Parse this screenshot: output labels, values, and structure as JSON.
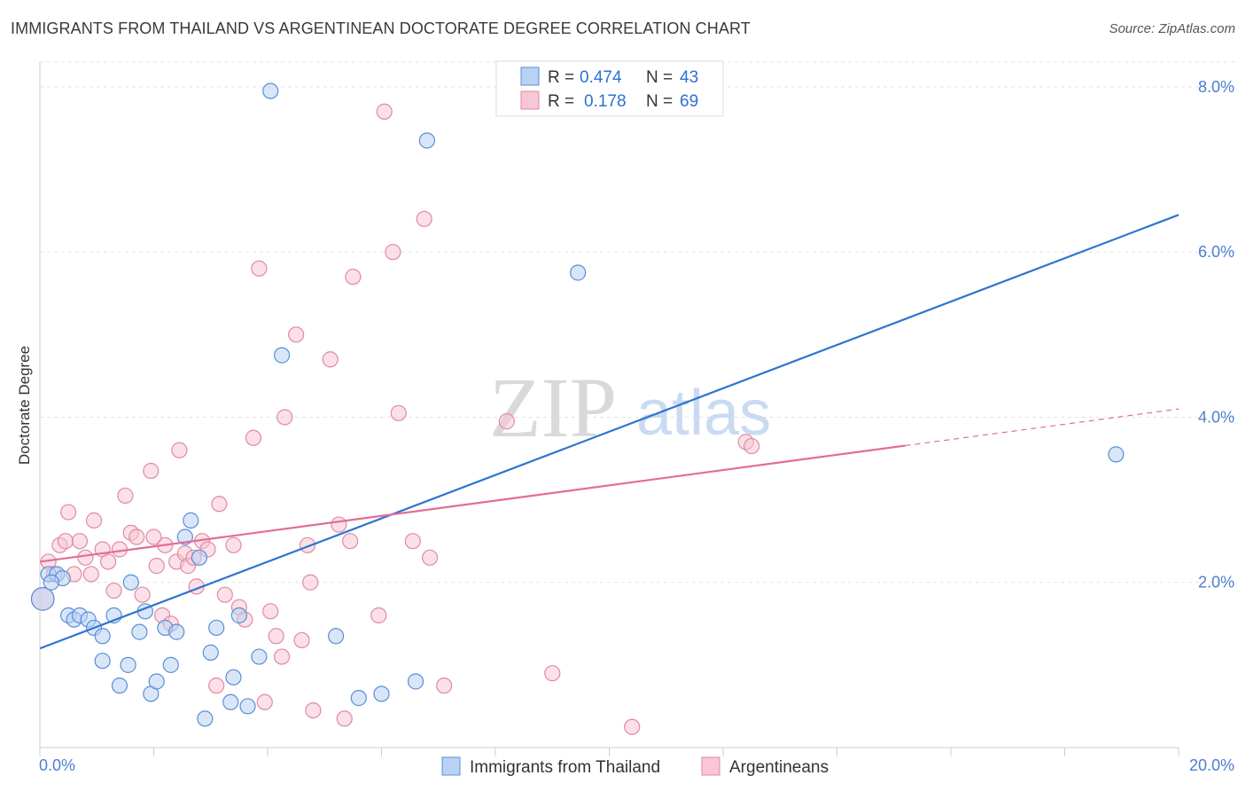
{
  "title": "IMMIGRANTS FROM THAILAND VS ARGENTINEAN DOCTORATE DEGREE CORRELATION CHART",
  "source": "Source: ZipAtlas.com",
  "watermark": {
    "zip": "ZIP",
    "atlas": "atlas"
  },
  "colors": {
    "thailand_fill": "#b8d2f3",
    "thailand_stroke": "#5a8ed8",
    "thailand_line": "#2f74d0",
    "arg_fill": "#f8c6d4",
    "arg_stroke": "#e08aa5",
    "arg_line": "#e26d96",
    "grid": "#e3e3e3",
    "tick_text": "#4a7fd0"
  },
  "chart_data": {
    "type": "scatter",
    "title": "IMMIGRANTS FROM THAILAND VS ARGENTINEAN DOCTORATE DEGREE CORRELATION CHART",
    "xlabel": "",
    "ylabel": "Doctorate Degree",
    "xlim": [
      0,
      20
    ],
    "ylim": [
      0,
      8.3
    ],
    "x_tick_labels": [
      "0.0%",
      "20.0%"
    ],
    "y_ticks": [
      2,
      4,
      6,
      8
    ],
    "y_tick_labels": [
      "2.0%",
      "4.0%",
      "6.0%",
      "8.0%"
    ],
    "legend": [
      {
        "r_label": "R =",
        "r_value": "0.474",
        "n_label": "N =",
        "n_value": "43"
      },
      {
        "r_label": "R =",
        "r_value": "0.178",
        "n_label": "N =",
        "n_value": "69"
      }
    ],
    "series": [
      {
        "name": "Immigrants from Thailand",
        "trend": {
          "x": [
            0,
            20
          ],
          "y": [
            1.2,
            6.45
          ],
          "solid_until": 20
        },
        "points": [
          [
            0.05,
            1.8,
            1.5
          ],
          [
            0.15,
            2.1,
            1
          ],
          [
            0.3,
            2.1,
            1
          ],
          [
            0.4,
            2.05,
            1
          ],
          [
            0.5,
            1.6,
            1
          ],
          [
            0.6,
            1.55,
            1
          ],
          [
            0.7,
            1.6,
            1
          ],
          [
            0.85,
            1.55,
            1
          ],
          [
            0.95,
            1.45,
            1
          ],
          [
            1.1,
            1.35,
            1
          ],
          [
            1.3,
            1.6,
            1
          ],
          [
            1.1,
            1.05,
            1
          ],
          [
            1.4,
            0.75,
            1
          ],
          [
            1.55,
            1.0,
            1
          ],
          [
            1.6,
            2.0,
            1
          ],
          [
            1.75,
            1.4,
            1
          ],
          [
            1.85,
            1.65,
            1
          ],
          [
            1.95,
            0.65,
            1
          ],
          [
            2.05,
            0.8,
            1
          ],
          [
            2.2,
            1.45,
            1
          ],
          [
            2.3,
            1.0,
            1
          ],
          [
            2.4,
            1.4,
            1
          ],
          [
            2.55,
            2.55,
            1
          ],
          [
            2.65,
            2.75,
            1
          ],
          [
            2.8,
            2.3,
            1
          ],
          [
            2.9,
            0.35,
            1
          ],
          [
            3.0,
            1.15,
            1
          ],
          [
            3.1,
            1.45,
            1
          ],
          [
            3.35,
            0.55,
            1
          ],
          [
            3.4,
            0.85,
            1
          ],
          [
            3.5,
            1.6,
            1
          ],
          [
            3.65,
            0.5,
            1
          ],
          [
            3.85,
            1.1,
            1
          ],
          [
            4.05,
            7.95,
            1
          ],
          [
            4.25,
            4.75,
            1
          ],
          [
            5.2,
            1.35,
            1
          ],
          [
            5.6,
            0.6,
            1
          ],
          [
            6.0,
            0.65,
            1
          ],
          [
            6.6,
            0.8,
            1
          ],
          [
            6.8,
            7.35,
            1
          ],
          [
            9.45,
            5.75,
            1
          ],
          [
            18.9,
            3.55,
            1
          ],
          [
            0.2,
            2.0,
            1
          ]
        ]
      },
      {
        "name": "Argentineans",
        "trend": {
          "x": [
            0,
            20
          ],
          "y": [
            2.25,
            4.1
          ],
          "solid_until": 15.2
        },
        "points": [
          [
            0.05,
            1.8,
            1.5
          ],
          [
            0.15,
            2.25,
            1
          ],
          [
            0.25,
            2.1,
            1
          ],
          [
            0.35,
            2.45,
            1
          ],
          [
            0.45,
            2.5,
            1
          ],
          [
            0.5,
            2.85,
            1
          ],
          [
            0.6,
            2.1,
            1
          ],
          [
            0.7,
            2.5,
            1
          ],
          [
            0.8,
            2.3,
            1
          ],
          [
            0.9,
            2.1,
            1
          ],
          [
            0.95,
            2.75,
            1
          ],
          [
            1.1,
            2.4,
            1
          ],
          [
            1.2,
            2.25,
            1
          ],
          [
            1.3,
            1.9,
            1
          ],
          [
            1.4,
            2.4,
            1
          ],
          [
            1.5,
            3.05,
            1
          ],
          [
            1.6,
            2.6,
            1
          ],
          [
            1.7,
            2.55,
            1
          ],
          [
            1.8,
            1.85,
            1
          ],
          [
            1.95,
            3.35,
            1
          ],
          [
            2.05,
            2.2,
            1
          ],
          [
            2.15,
            1.6,
            1
          ],
          [
            2.2,
            2.45,
            1
          ],
          [
            2.3,
            1.5,
            1
          ],
          [
            2.4,
            2.25,
            1
          ],
          [
            2.45,
            3.6,
            1
          ],
          [
            2.55,
            2.35,
            1
          ],
          [
            2.6,
            2.2,
            1
          ],
          [
            2.7,
            2.3,
            1
          ],
          [
            2.75,
            1.95,
            1
          ],
          [
            2.85,
            2.5,
            1
          ],
          [
            2.95,
            2.4,
            1
          ],
          [
            3.1,
            0.75,
            1
          ],
          [
            3.15,
            2.95,
            1
          ],
          [
            3.25,
            1.85,
            1
          ],
          [
            3.4,
            2.45,
            1
          ],
          [
            3.5,
            1.7,
            1
          ],
          [
            3.6,
            1.55,
            1
          ],
          [
            3.75,
            3.75,
            1
          ],
          [
            3.85,
            5.8,
            1
          ],
          [
            3.95,
            0.55,
            1
          ],
          [
            4.05,
            1.65,
            1
          ],
          [
            4.15,
            1.35,
            1
          ],
          [
            4.25,
            1.1,
            1
          ],
          [
            4.3,
            4.0,
            1
          ],
          [
            4.5,
            5.0,
            1
          ],
          [
            4.6,
            1.3,
            1
          ],
          [
            4.7,
            2.45,
            1
          ],
          [
            4.75,
            2.0,
            1
          ],
          [
            4.8,
            0.45,
            1
          ],
          [
            5.1,
            4.7,
            1
          ],
          [
            5.25,
            2.7,
            1
          ],
          [
            5.35,
            0.35,
            1
          ],
          [
            5.45,
            2.5,
            1
          ],
          [
            5.5,
            5.7,
            1
          ],
          [
            5.95,
            1.6,
            1
          ],
          [
            6.05,
            7.7,
            1
          ],
          [
            6.2,
            6.0,
            1
          ],
          [
            6.3,
            4.05,
            1
          ],
          [
            6.55,
            2.5,
            1
          ],
          [
            6.75,
            6.4,
            1
          ],
          [
            6.85,
            2.3,
            1
          ],
          [
            7.1,
            0.75,
            1
          ],
          [
            8.2,
            3.95,
            1
          ],
          [
            9.0,
            0.9,
            1
          ],
          [
            10.4,
            0.25,
            1
          ],
          [
            12.4,
            3.7,
            1
          ],
          [
            12.5,
            3.65,
            1
          ],
          [
            2.0,
            2.55,
            1
          ]
        ]
      }
    ]
  },
  "bottom_legend": [
    {
      "label": "Immigrants from Thailand"
    },
    {
      "label": "Argentineans"
    }
  ]
}
